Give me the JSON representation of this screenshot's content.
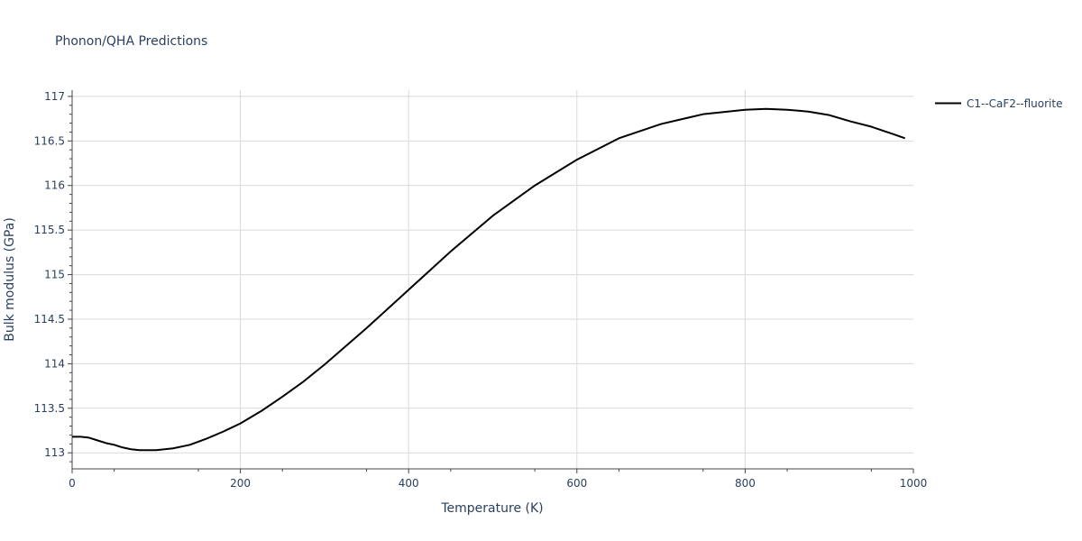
{
  "chart_data": {
    "type": "line",
    "title": "Phonon/QHA Predictions",
    "xlabel": "Temperature (K)",
    "ylabel": "Bulk modulus (GPa)",
    "xlim": [
      0,
      1000
    ],
    "ylim": [
      112.82,
      117.07
    ],
    "x_ticks": [
      0,
      200,
      400,
      600,
      800,
      1000
    ],
    "x_tick_labels": [
      "0",
      "200",
      "400",
      "600",
      "800",
      "1000"
    ],
    "y_ticks": [
      113,
      113.5,
      114,
      114.5,
      115,
      115.5,
      116,
      116.5,
      117
    ],
    "y_tick_labels": [
      "113",
      "113.5",
      "114",
      "114.5",
      "115",
      "115.5",
      "116",
      "116.5",
      "117"
    ],
    "grid": true,
    "legend_position": "top-right, outside plot",
    "series": [
      {
        "name": "C1--CaF2--fluorite",
        "color": "#000000",
        "x": [
          0,
          10,
          20,
          30,
          40,
          50,
          60,
          70,
          80,
          90,
          100,
          110,
          120,
          140,
          160,
          180,
          200,
          225,
          250,
          275,
          300,
          350,
          400,
          450,
          500,
          550,
          600,
          650,
          700,
          750,
          800,
          825,
          850,
          875,
          900,
          925,
          950,
          975,
          990
        ],
        "values": [
          113.18,
          113.18,
          113.17,
          113.14,
          113.11,
          113.09,
          113.06,
          113.04,
          113.03,
          113.03,
          113.03,
          113.04,
          113.05,
          113.09,
          113.16,
          113.24,
          113.33,
          113.47,
          113.63,
          113.8,
          113.99,
          114.4,
          114.83,
          115.26,
          115.66,
          116.0,
          116.29,
          116.53,
          116.69,
          116.8,
          116.85,
          116.86,
          116.85,
          116.83,
          116.79,
          116.72,
          116.66,
          116.58,
          116.53
        ]
      }
    ]
  }
}
